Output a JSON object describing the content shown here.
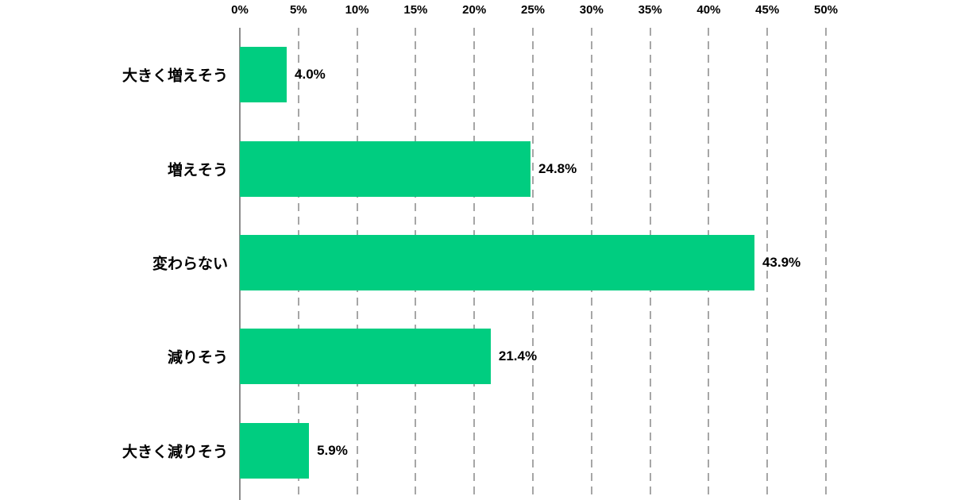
{
  "chart_data": {
    "type": "bar",
    "orientation": "horizontal",
    "title": "",
    "xlabel": "",
    "ylabel": "",
    "categories": [
      "大きく増えそう",
      "増えそう",
      "変わらない",
      "減りそう",
      "大きく減りそう"
    ],
    "values": [
      4.0,
      24.8,
      43.9,
      21.4,
      5.9
    ],
    "value_labels": [
      "4.0%",
      "24.8%",
      "43.9%",
      "21.4%",
      "5.9%"
    ],
    "xlim": [
      0,
      50
    ],
    "x_tick_values": [
      0,
      5,
      10,
      15,
      20,
      25,
      30,
      35,
      40,
      45,
      50
    ],
    "x_ticks": [
      "0%",
      "5%",
      "10%",
      "15%",
      "20%",
      "25%",
      "30%",
      "35%",
      "40%",
      "45%",
      "50%"
    ],
    "tick_position": "top",
    "grid": "vertical-dashed",
    "legend": "none",
    "colors": {
      "bar": "#00cd80",
      "gridline": "#a6a6a6",
      "axis_line": "#8c8c8c",
      "text": "#000000",
      "background": "#ffffff"
    }
  }
}
